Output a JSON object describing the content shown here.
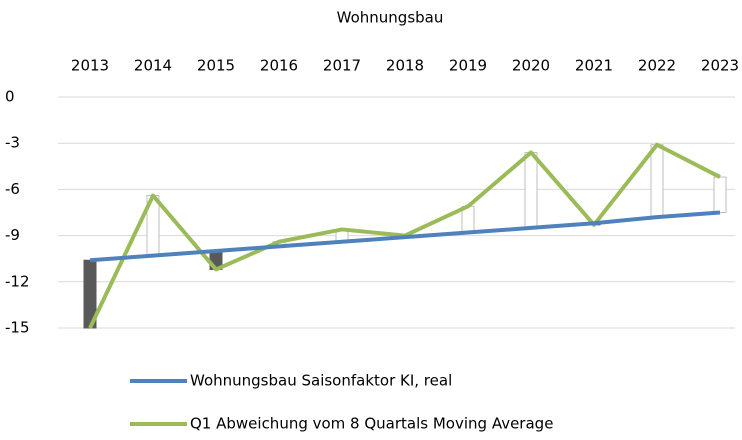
{
  "chart_data": {
    "type": "line",
    "title": "Wohnungsbau",
    "categories": [
      "2013",
      "2014",
      "2015",
      "2016",
      "2017",
      "2018",
      "2019",
      "2020",
      "2021",
      "2022",
      "2023"
    ],
    "series": [
      {
        "name": "Wohnungsbau Saisonfaktor KI, real",
        "color": "#4f81bd",
        "values": [
          -10.6,
          -10.3,
          -10.0,
          -9.7,
          -9.4,
          -9.1,
          -8.8,
          -8.5,
          -8.2,
          -7.8,
          -7.5
        ]
      },
      {
        "name": "Q1 Abweichung vom 8 Quartals Moving Average",
        "color": "#9bbb59",
        "values": [
          -15.0,
          -6.4,
          -11.2,
          -9.4,
          -8.6,
          -9.0,
          -7.1,
          -3.6,
          -8.3,
          -3.1,
          -5.2
        ]
      }
    ],
    "ylim": [
      -15,
      0
    ],
    "yticks": [
      0,
      -3,
      -6,
      -9,
      -12,
      -15
    ],
    "grid": true,
    "up_down_bars": true,
    "up_bar_color": "#ffffff",
    "down_bar_color": "#595959",
    "legend": "bottom"
  }
}
